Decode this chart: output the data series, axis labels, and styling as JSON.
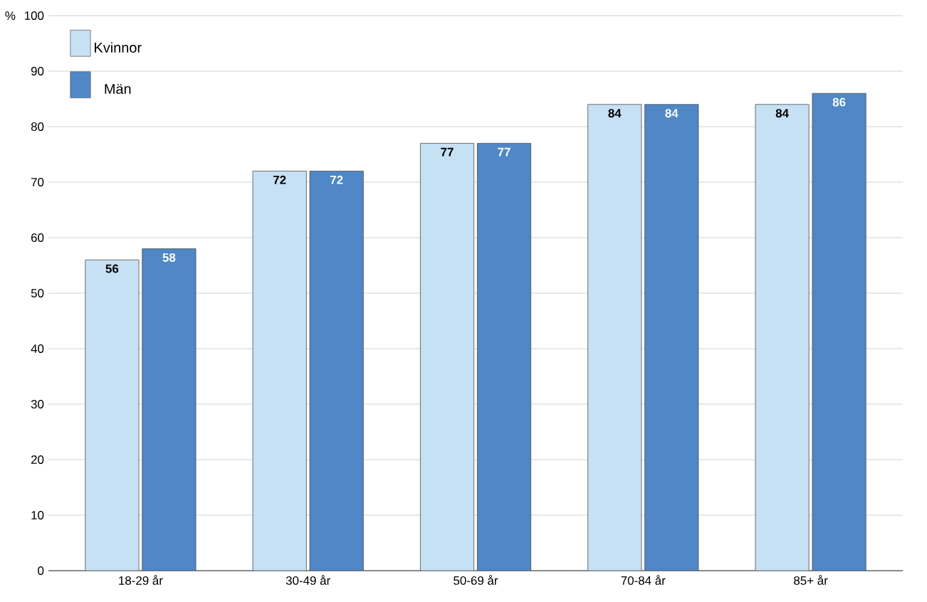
{
  "chart_data": {
    "type": "bar",
    "ylabel": "%",
    "categories": [
      "18-29 år",
      "30-49 år",
      "50-69 år",
      "70-84 år",
      "85+ år"
    ],
    "series": [
      {
        "name": "Kvinnor",
        "color": "#c6e0f4",
        "values": [
          56,
          72,
          77,
          84,
          84
        ]
      },
      {
        "name": "Män",
        "color": "#4f87c7",
        "values": [
          58,
          72,
          77,
          84,
          86
        ]
      }
    ],
    "ylim": [
      0,
      100
    ],
    "yticks": [
      0,
      10,
      20,
      30,
      40,
      50,
      60,
      70,
      80,
      90,
      100
    ],
    "grid": "y",
    "legend": "top left",
    "data_labels": true
  }
}
